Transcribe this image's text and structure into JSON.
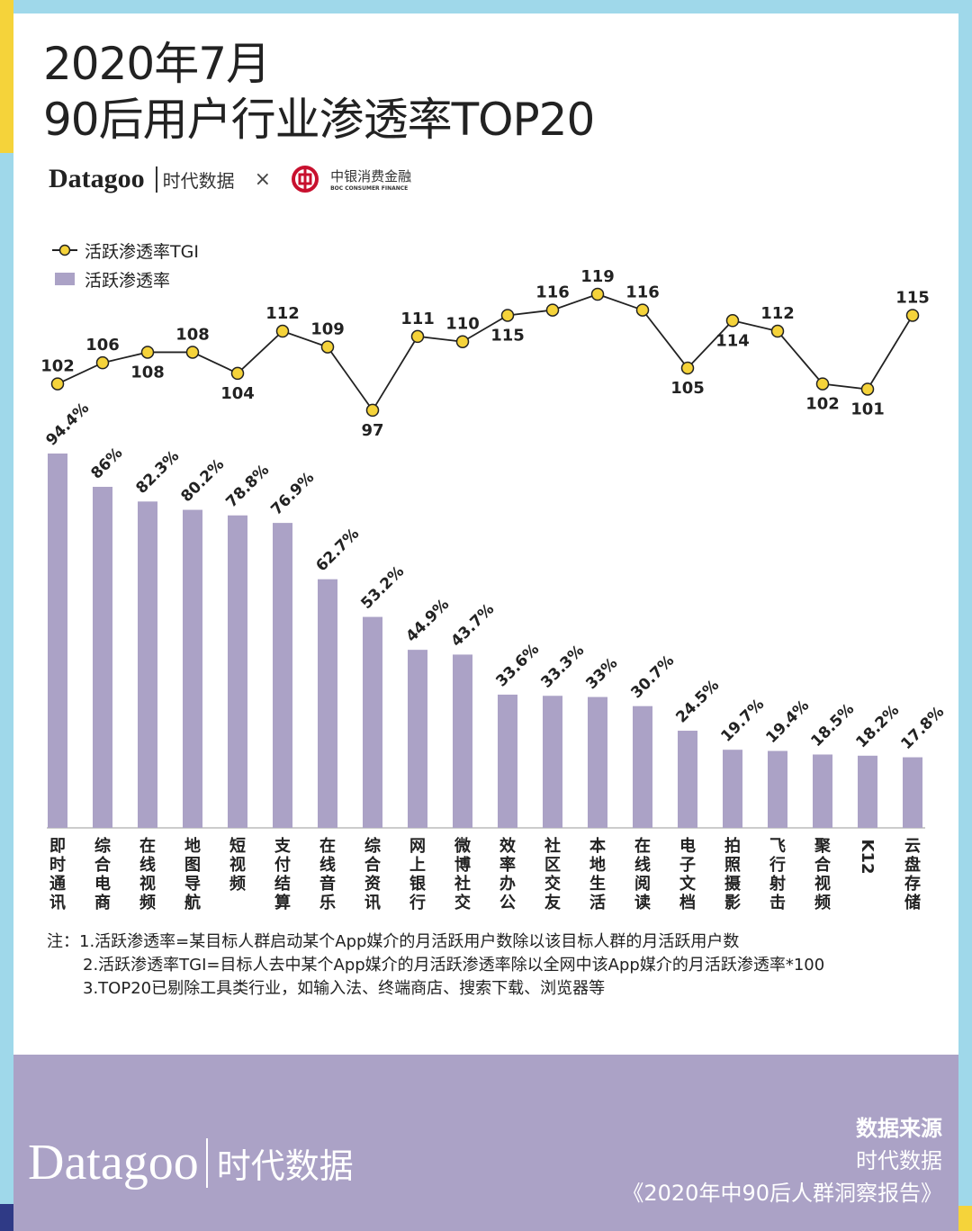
{
  "title_line1": "2020年7月",
  "title_line2": "90后用户行业渗透率TOP20",
  "logos": {
    "datagoo": "Datagoo",
    "datagoo_cn": "时代数据",
    "times": "×",
    "boc_cn": "中银消费金融",
    "boc_en": "BOC CONSUMER FINANCE"
  },
  "colors": {
    "bar": "#ab a2c6",
    "line": "#222222",
    "marker": "#f5d33a",
    "frame_blue": "#9fd8ea",
    "frame_yellow": "#f5d33a",
    "footer": "#aba2c6"
  },
  "chart_data": {
    "type": "bar+line",
    "categories": [
      "即时通讯",
      "综合电商",
      "在线视频",
      "地图导航",
      "短视频",
      "支付结算",
      "在线音乐",
      "综合资讯",
      "网上银行",
      "微博社交",
      "效率办公",
      "社区交友",
      "本地生活",
      "在线阅读",
      "电子文档",
      "拍照摄影",
      "飞行射击",
      "聚合视频",
      "K12",
      "云盘存储"
    ],
    "series": [
      {
        "name": "活跃渗透率TGI",
        "type": "line",
        "values": [
          102,
          106,
          108,
          108,
          104,
          112,
          109,
          97,
          111,
          110,
          115,
          116,
          119,
          116,
          105,
          114,
          112,
          102,
          101,
          115
        ]
      },
      {
        "name": "活跃渗透率",
        "type": "bar",
        "values": [
          94.4,
          86,
          82.3,
          80.2,
          78.8,
          76.9,
          62.7,
          53.2,
          44.9,
          43.7,
          33.6,
          33.3,
          33,
          30.7,
          24.5,
          19.7,
          19.4,
          18.5,
          18.2,
          17.8
        ],
        "labels": [
          "94.4%",
          "86%",
          "82.3%",
          "80.2%",
          "78.8%",
          "76.9%",
          "62.7%",
          "53.2%",
          "44.9%",
          "43.7%",
          "33.6%",
          "33.3%",
          "33%",
          "30.7%",
          "24.5%",
          "19.7%",
          "19.4%",
          "18.5%",
          "18.2%",
          "17.8%"
        ]
      }
    ],
    "legend": "top-left",
    "grid": false
  },
  "notes": {
    "prefix": "注：",
    "items": [
      "1.活跃渗透率=某目标人群启动某个App媒介的月活跃用户数除以该目标人群的月活跃用户数",
      "2.活跃渗透率TGI=目标人去中某个App媒介的月活跃渗透率除以全网中该App媒介的月活跃渗透率*100",
      "3.TOP20已剔除工具类行业，如输入法、终端商店、搜索下载、浏览器等"
    ]
  },
  "footer": {
    "logo": "Datagoo",
    "logo_cn": "时代数据",
    "source_title": "数据来源",
    "source_name": "时代数据",
    "source_report": "《2020年中90后人群洞察报告》"
  }
}
